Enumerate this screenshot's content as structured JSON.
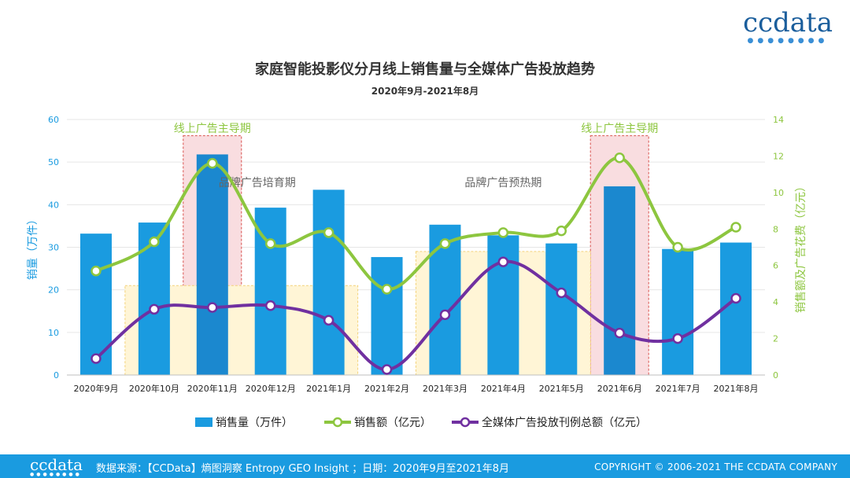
{
  "brand": {
    "logo": "ccdata"
  },
  "footer": {
    "logo": "ccdata",
    "source": "数据来源：【CCData】熵图洞察 Entropy GEO Insight ；日期：2020年9月至2021年8月",
    "copyright": "COPYRIGHT © 2006-2021  THE CCDATA COMPANY"
  },
  "colors": {
    "bar": "#1a9be0",
    "bar_dark": "#1b88cf",
    "sales_line": "#8dc63f",
    "ad_line": "#7030a0",
    "footer": "#1a9be0"
  },
  "chart_data": {
    "type": "bar+line",
    "title": "家庭智能投影仪分月线上销售量与全媒体广告投放趋势",
    "subtitle": "2020年9月-2021年8月",
    "ylabel_left": "销量（万件）",
    "ylabel_right": "销售额及广告花费（亿元）",
    "ylim_left": [
      0,
      60
    ],
    "ylim_right": [
      0,
      14
    ],
    "yticks_left": [
      "0",
      "10",
      "20",
      "30",
      "40",
      "50",
      "60"
    ],
    "yticks_right": [
      "0",
      "2",
      "4",
      "6",
      "8",
      "10",
      "12",
      "14"
    ],
    "categories": [
      "2020年9月",
      "2020年10月",
      "2020年11月",
      "2020年12月",
      "2021年1月",
      "2021年2月",
      "2021年3月",
      "2021年4月",
      "2021年5月",
      "2021年6月",
      "2021年7月",
      "2021年8月"
    ],
    "series": [
      {
        "name": "销售量（万件）",
        "type": "bar",
        "axis": "left",
        "values": [
          33.2,
          35.8,
          51.8,
          39.3,
          43.5,
          27.7,
          35.3,
          32.8,
          30.9,
          44.3,
          29.6,
          31.1
        ]
      },
      {
        "name": "销售额（亿元）",
        "type": "line",
        "axis": "right",
        "values": [
          5.7,
          7.3,
          11.6,
          7.2,
          7.8,
          4.7,
          7.2,
          7.8,
          7.9,
          11.9,
          7.0,
          8.1
        ]
      },
      {
        "name": "全媒体广告投放刊例总额（亿元）",
        "type": "line",
        "axis": "right",
        "values": [
          0.9,
          3.6,
          3.7,
          3.8,
          3.0,
          0.3,
          3.3,
          6.2,
          4.5,
          2.3,
          2.0,
          4.2
        ]
      }
    ],
    "annotations": [
      {
        "text": "线上广告主导期",
        "type": "highlight",
        "from": "2020年11月",
        "to": "2020年11月"
      },
      {
        "text": "线上广告主导期",
        "type": "highlight",
        "from": "2021年6月",
        "to": "2021年6月"
      },
      {
        "text": "品牌广告培育期",
        "type": "band",
        "from": "2020年10月",
        "to": "2021年1月",
        "top_value": 21
      },
      {
        "text": "品牌广告预热期",
        "type": "band",
        "from": "2021年3月",
        "to": "2021年5月",
        "top_value": 29
      }
    ]
  }
}
